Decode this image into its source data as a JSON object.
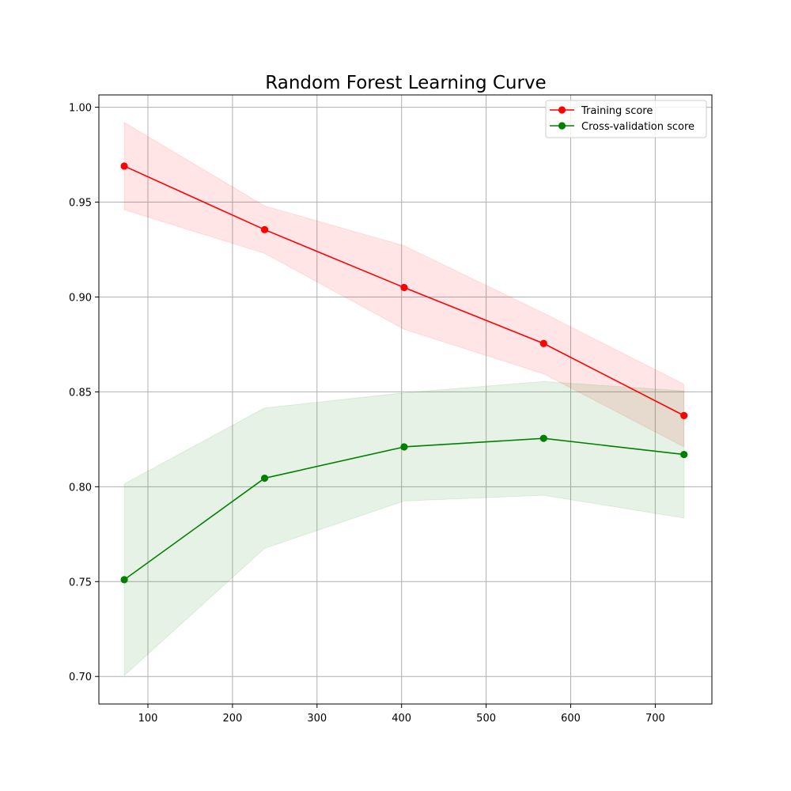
{
  "chart_data": {
    "type": "line",
    "title": "Random Forest Learning Curve",
    "xlabel": "",
    "ylabel": "",
    "xlim": [
      42,
      767
    ],
    "ylim": [
      0.6855,
      1.0065
    ],
    "xticks": [
      100,
      200,
      300,
      400,
      500,
      600,
      700
    ],
    "yticks": [
      0.7,
      0.75,
      0.8,
      0.85,
      0.9,
      0.95,
      1.0
    ],
    "grid": true,
    "legend_position": "top-right",
    "x": [
      72,
      238,
      403,
      568,
      734
    ],
    "series": [
      {
        "name": "Training score",
        "color": "#ff0000",
        "fill_color": "#ff0000",
        "values": [
          0.969,
          0.9355,
          0.905,
          0.8755,
          0.8375
        ],
        "band_upper": [
          0.992,
          0.948,
          0.927,
          0.8915,
          0.854
        ],
        "band_lower": [
          0.946,
          0.923,
          0.883,
          0.8595,
          0.821
        ]
      },
      {
        "name": "Cross-validation score",
        "color": "#008000",
        "fill_color": "#008000",
        "values": [
          0.751,
          0.8045,
          0.821,
          0.8255,
          0.817
        ],
        "band_upper": [
          0.8015,
          0.8415,
          0.8495,
          0.8555,
          0.8505
        ],
        "band_lower": [
          0.7005,
          0.7675,
          0.7925,
          0.7955,
          0.7835
        ]
      }
    ]
  }
}
